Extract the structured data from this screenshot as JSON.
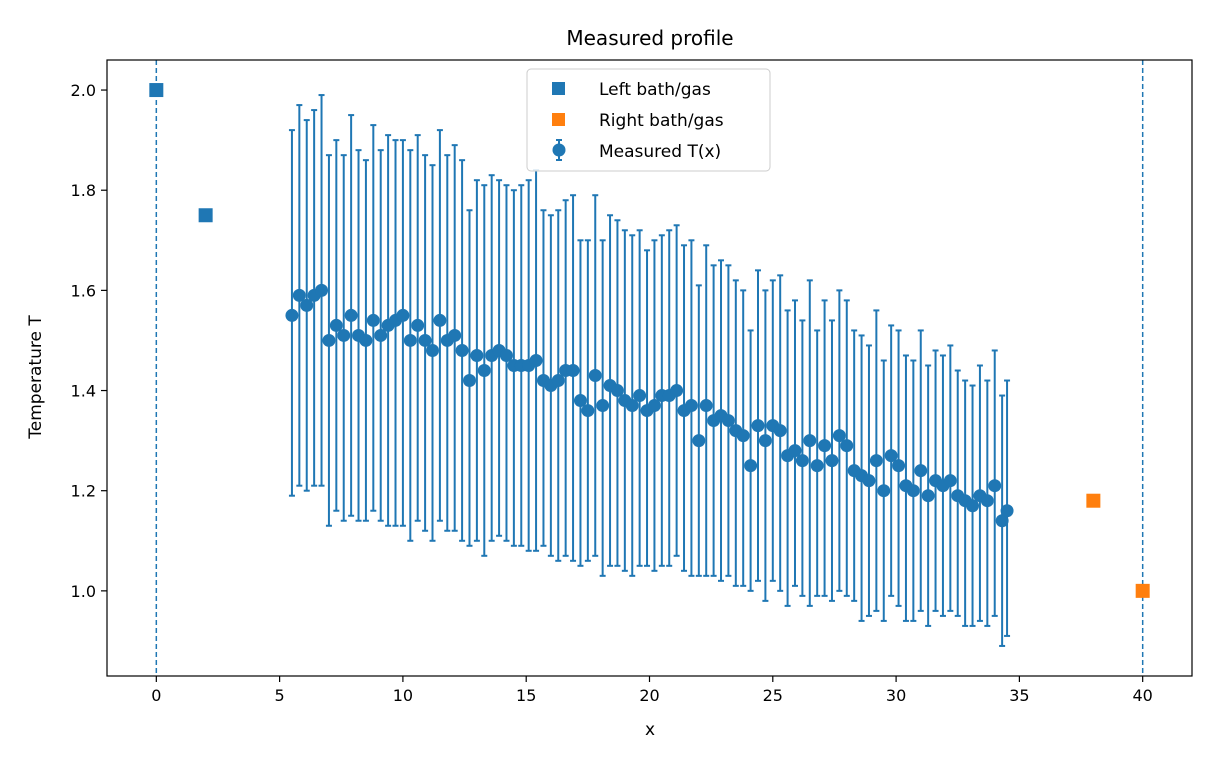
{
  "colors": {
    "left": "#1f77b4",
    "right": "#ff7f0e",
    "measured": "#1f77b4"
  },
  "chart_data": {
    "type": "scatter",
    "title": "Measured profile",
    "xlabel": "x",
    "ylabel": "Temperature T",
    "xlim": [
      -2,
      42
    ],
    "ylim": [
      0.83,
      2.06
    ],
    "xticks": [
      0,
      5,
      10,
      15,
      20,
      25,
      30,
      35,
      40
    ],
    "yticks": [
      1.0,
      1.2,
      1.4,
      1.6,
      1.8,
      2.0
    ],
    "xtick_labels": [
      "0",
      "5",
      "10",
      "15",
      "20",
      "25",
      "30",
      "35",
      "40"
    ],
    "ytick_labels": [
      "1.0",
      "1.2",
      "1.4",
      "1.6",
      "1.8",
      "2.0"
    ],
    "vlines": [
      0,
      40
    ],
    "grid": false,
    "legend_position": "top-center",
    "legend": [
      "Left bath/gas",
      "Right bath/gas",
      "Measured T(x)"
    ],
    "series": [
      {
        "name": "Left bath/gas",
        "marker": "square",
        "x": [
          0,
          2
        ],
        "y": [
          2.0,
          1.75
        ]
      },
      {
        "name": "Right bath/gas",
        "marker": "square",
        "x": [
          38,
          40
        ],
        "y": [
          1.18,
          1.0
        ]
      },
      {
        "name": "Measured T(x)",
        "marker": "circle",
        "error_bars": true,
        "x": [
          5.5,
          5.8,
          6.1,
          6.4,
          6.7,
          7.0,
          7.3,
          7.6,
          7.9,
          8.2,
          8.5,
          8.8,
          9.1,
          9.4,
          9.7,
          10.0,
          10.3,
          10.6,
          10.9,
          11.2,
          11.5,
          11.8,
          12.1,
          12.4,
          12.7,
          13.0,
          13.3,
          13.6,
          13.9,
          14.2,
          14.5,
          14.8,
          15.1,
          15.4,
          15.7,
          16.0,
          16.3,
          16.6,
          16.9,
          17.2,
          17.5,
          17.8,
          18.1,
          18.4,
          18.7,
          19.0,
          19.3,
          19.6,
          19.9,
          20.2,
          20.5,
          20.8,
          21.1,
          21.4,
          21.7,
          22.0,
          22.3,
          22.6,
          22.9,
          23.2,
          23.5,
          23.8,
          24.1,
          24.4,
          24.7,
          25.0,
          25.3,
          25.6,
          25.9,
          26.2,
          26.5,
          26.8,
          27.1,
          27.4,
          27.7,
          28.0,
          28.3,
          28.6,
          28.9,
          29.2,
          29.5,
          29.8,
          30.1,
          30.4,
          30.7,
          31.0,
          31.3,
          31.6,
          31.9,
          32.2,
          32.5,
          32.8,
          33.1,
          33.4,
          33.7,
          34.0,
          34.3,
          34.5
        ],
        "y": [
          1.55,
          1.59,
          1.57,
          1.59,
          1.6,
          1.5,
          1.53,
          1.51,
          1.55,
          1.51,
          1.5,
          1.54,
          1.51,
          1.53,
          1.54,
          1.55,
          1.5,
          1.53,
          1.5,
          1.48,
          1.54,
          1.5,
          1.51,
          1.48,
          1.42,
          1.47,
          1.44,
          1.47,
          1.48,
          1.47,
          1.45,
          1.45,
          1.45,
          1.46,
          1.42,
          1.41,
          1.42,
          1.44,
          1.44,
          1.38,
          1.36,
          1.43,
          1.37,
          1.41,
          1.4,
          1.38,
          1.37,
          1.39,
          1.36,
          1.37,
          1.39,
          1.39,
          1.4,
          1.36,
          1.37,
          1.3,
          1.37,
          1.34,
          1.35,
          1.34,
          1.32,
          1.31,
          1.25,
          1.33,
          1.3,
          1.33,
          1.32,
          1.27,
          1.28,
          1.26,
          1.3,
          1.25,
          1.29,
          1.26,
          1.31,
          1.29,
          1.24,
          1.23,
          1.22,
          1.26,
          1.2,
          1.27,
          1.25,
          1.21,
          1.2,
          1.24,
          1.19,
          1.22,
          1.21,
          1.22,
          1.19,
          1.18,
          1.17,
          1.19,
          1.18,
          1.21,
          1.14,
          1.16
        ],
        "yerr_lower": [
          1.19,
          1.21,
          1.2,
          1.21,
          1.21,
          1.13,
          1.16,
          1.14,
          1.15,
          1.14,
          1.14,
          1.16,
          1.14,
          1.13,
          1.13,
          1.13,
          1.1,
          1.14,
          1.12,
          1.1,
          1.14,
          1.12,
          1.12,
          1.1,
          1.09,
          1.1,
          1.07,
          1.1,
          1.11,
          1.1,
          1.09,
          1.09,
          1.08,
          1.08,
          1.09,
          1.07,
          1.06,
          1.07,
          1.06,
          1.05,
          1.06,
          1.07,
          1.03,
          1.05,
          1.05,
          1.04,
          1.03,
          1.05,
          1.05,
          1.04,
          1.05,
          1.05,
          1.07,
          1.04,
          1.03,
          1.03,
          1.03,
          1.03,
          1.02,
          1.03,
          1.01,
          1.01,
          1.0,
          1.02,
          0.98,
          1.02,
          1.0,
          0.97,
          1.01,
          0.99,
          0.97,
          0.99,
          0.99,
          0.98,
          1.0,
          0.99,
          0.98,
          0.94,
          0.95,
          0.96,
          0.94,
          0.99,
          0.97,
          0.94,
          0.94,
          0.96,
          0.93,
          0.96,
          0.95,
          0.96,
          0.95,
          0.93,
          0.93,
          0.94,
          0.93,
          0.95,
          0.89,
          0.91
        ],
        "yerr_upper": [
          1.92,
          1.97,
          1.94,
          1.96,
          1.99,
          1.87,
          1.9,
          1.87,
          1.95,
          1.88,
          1.86,
          1.93,
          1.88,
          1.91,
          1.9,
          1.9,
          1.88,
          1.91,
          1.87,
          1.85,
          1.92,
          1.87,
          1.89,
          1.86,
          1.76,
          1.82,
          1.81,
          1.83,
          1.82,
          1.81,
          1.8,
          1.81,
          1.82,
          1.84,
          1.76,
          1.75,
          1.76,
          1.78,
          1.79,
          1.7,
          1.7,
          1.79,
          1.7,
          1.75,
          1.74,
          1.72,
          1.71,
          1.72,
          1.68,
          1.7,
          1.71,
          1.72,
          1.73,
          1.69,
          1.7,
          1.61,
          1.69,
          1.65,
          1.66,
          1.65,
          1.62,
          1.6,
          1.52,
          1.64,
          1.6,
          1.62,
          1.63,
          1.56,
          1.58,
          1.54,
          1.62,
          1.52,
          1.58,
          1.54,
          1.6,
          1.58,
          1.52,
          1.51,
          1.49,
          1.56,
          1.46,
          1.53,
          1.52,
          1.47,
          1.46,
          1.52,
          1.45,
          1.48,
          1.47,
          1.49,
          1.44,
          1.42,
          1.41,
          1.45,
          1.42,
          1.48,
          1.39,
          1.42
        ]
      }
    ]
  }
}
